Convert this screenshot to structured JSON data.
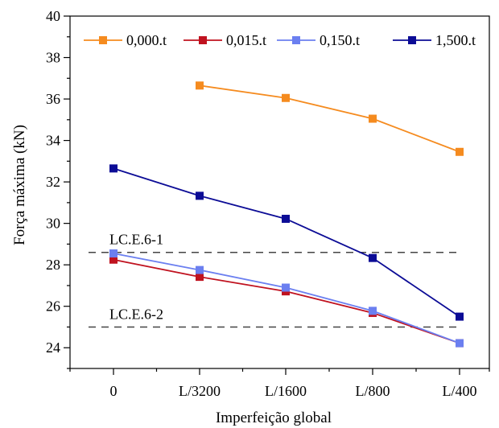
{
  "chart_data": {
    "type": "line",
    "title": "",
    "xlabel": "Imperfeição global",
    "ylabel": "Força máxima (kN)",
    "categories": [
      "0",
      "L/3200",
      "L/1600",
      "L/800",
      "L/400"
    ],
    "ylim": [
      23,
      40
    ],
    "yticks": [
      24,
      26,
      28,
      30,
      32,
      34,
      36,
      38,
      40
    ],
    "grid": false,
    "legend_position": "top",
    "series": [
      {
        "name": "0,000.t",
        "color": "#f58b1f",
        "values": [
          null,
          36.65,
          36.05,
          35.05,
          33.45
        ]
      },
      {
        "name": "0,015.t",
        "color": "#c0121f",
        "values": [
          28.25,
          27.42,
          26.72,
          25.68,
          24.22
        ]
      },
      {
        "name": "0,150.t",
        "color": "#6b7ff0",
        "values": [
          28.55,
          27.75,
          26.9,
          25.78,
          24.22
        ]
      },
      {
        "name": "1,500.t",
        "color": "#0c0c96",
        "values": [
          32.65,
          31.33,
          30.22,
          28.33,
          25.5
        ]
      }
    ],
    "reference_lines": [
      {
        "label": "LC.E.6-1",
        "y": 28.6
      },
      {
        "label": "LC.E.6-2",
        "y": 25.0
      }
    ]
  }
}
